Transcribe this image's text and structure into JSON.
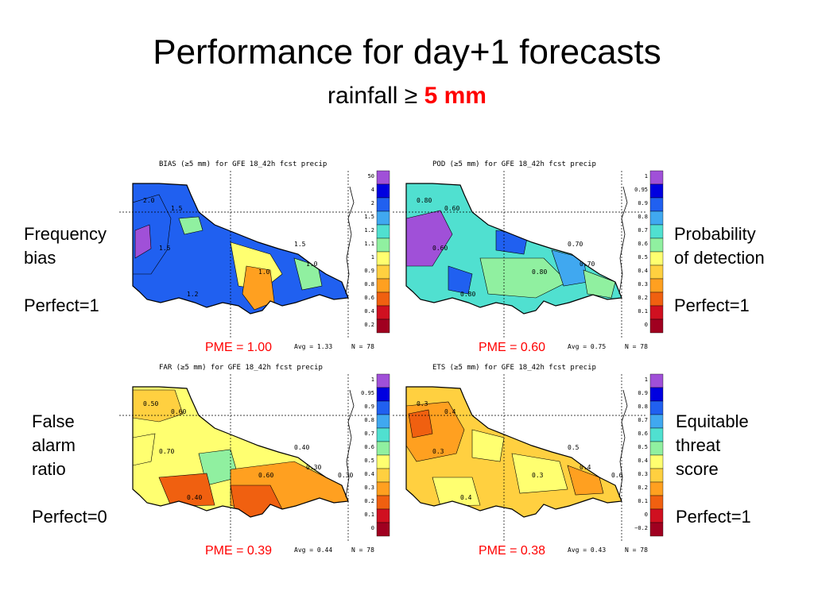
{
  "slide": {
    "title": "Performance for day+1 forecasts",
    "subtitle_prefix": "rainfall ≥ ",
    "subtitle_highlight": "5 mm",
    "highlight_color": "#ff0000"
  },
  "panels": [
    {
      "id": "bias",
      "map_title": "BIAS (≥5 mm) for GFE 18_42h fcst precip",
      "side_label": "Frequency\nbias",
      "perfect": "Perfect=1",
      "pme": "PME = 1.00",
      "avg": "Avg = 1.33",
      "n": "N = 78",
      "legend_ticks": [
        "50",
        "4",
        "2",
        "1.5",
        "1.2",
        "1.1",
        "1",
        "0.9",
        "0.8",
        "0.6",
        "0.4",
        "0.2"
      ],
      "legend_colors": [
        "#a050d8",
        "#0000e0",
        "#2060f0",
        "#40a8f0",
        "#50e0d0",
        "#90f0a0",
        "#ffff70",
        "#ffd040",
        "#ffa020",
        "#f06010",
        "#d01020",
        "#a00020"
      ],
      "contour_labels": [
        "2.0",
        "1.5",
        "1.5",
        "1.2",
        "1.0",
        "1.5",
        "1.0"
      ],
      "base_color": "#2060f0"
    },
    {
      "id": "pod",
      "map_title": "POD (≥5 mm) for GFE 18_42h fcst precip",
      "side_label": "Probability\nof detection",
      "perfect": "Perfect=1",
      "pme": "PME = 0.60",
      "avg": "Avg = 0.75",
      "n": "N = 78",
      "legend_ticks": [
        "1",
        "0.95",
        "0.9",
        "0.8",
        "0.7",
        "0.6",
        "0.5",
        "0.4",
        "0.3",
        "0.2",
        "0.1",
        "0"
      ],
      "legend_colors": [
        "#a050d8",
        "#0000e0",
        "#2060f0",
        "#40a8f0",
        "#50e0d0",
        "#90f0a0",
        "#ffff70",
        "#ffd040",
        "#ffa020",
        "#f06010",
        "#d01020",
        "#a00020"
      ],
      "contour_labels": [
        "0.80",
        "0.60",
        "0.60",
        "0.80",
        "0.80",
        "0.70",
        "0.70"
      ],
      "base_color": "#50e0d0"
    },
    {
      "id": "far",
      "map_title": "FAR (≥5 mm) for GFE 18_42h fcst precip",
      "side_label": "False\nalarm\nratio",
      "perfect": "Perfect=0",
      "pme": "PME = 0.39",
      "avg": "Avg = 0.44",
      "n": "N = 78",
      "legend_ticks": [
        "1",
        "0.95",
        "0.9",
        "0.8",
        "0.7",
        "0.6",
        "0.5",
        "0.4",
        "0.3",
        "0.2",
        "0.1",
        "0"
      ],
      "legend_colors": [
        "#a050d8",
        "#0000e0",
        "#2060f0",
        "#40a8f0",
        "#50e0d0",
        "#90f0a0",
        "#ffff70",
        "#ffd040",
        "#ffa020",
        "#f06010",
        "#d01020",
        "#a00020"
      ],
      "contour_labels": [
        "0.50",
        "0.60",
        "0.70",
        "0.40",
        "0.60",
        "0.40",
        "0.30",
        "0.30"
      ],
      "base_color": "#ffff70"
    },
    {
      "id": "ets",
      "map_title": "ETS (≥5 mm) for GFE 18_42h fcst precip",
      "side_label": "Equitable\nthreat\nscore",
      "perfect": "Perfect=1",
      "pme": "PME = 0.38",
      "avg": "Avg = 0.43",
      "n": "N = 78",
      "legend_ticks": [
        "1",
        "0.9",
        "0.8",
        "0.7",
        "0.6",
        "0.5",
        "0.4",
        "0.3",
        "0.2",
        "0.1",
        "0",
        "−0.2"
      ],
      "legend_colors": [
        "#a050d8",
        "#0000e0",
        "#2060f0",
        "#40a8f0",
        "#50e0d0",
        "#90f0a0",
        "#ffff70",
        "#ffd040",
        "#ffa020",
        "#f06010",
        "#d01020",
        "#a00020"
      ],
      "contour_labels": [
        "0.3",
        "0.4",
        "0.3",
        "0.4",
        "0.3",
        "0.5",
        "0.4",
        "0.6"
      ],
      "base_color": "#ffd040"
    }
  ]
}
